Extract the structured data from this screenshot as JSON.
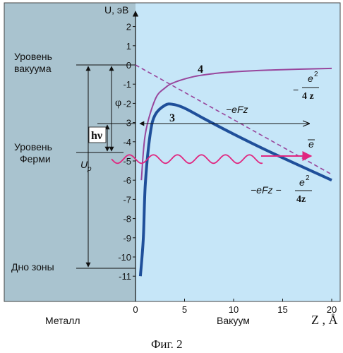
{
  "figure": {
    "caption": "Фиг. 2",
    "axis_y_label": "U, эВ",
    "axis_x_label": "Z , Å",
    "region_left": "Металл",
    "region_right": "Вакуум",
    "left_labels": {
      "vacuum_level_1": "Уровень",
      "vacuum_level_2": "вакуума",
      "fermi_level_1": "Уровень",
      "fermi_level_2": "Ферми",
      "band_bottom": "Дно зоны",
      "up": "U",
      "up_sub": "p",
      "phi": "φ",
      "hv": "hν"
    },
    "curve_labels": {
      "c4": "4",
      "c3": "3",
      "eFz": "−eFz",
      "electron": "e",
      "image_num": "e",
      "image_den": "4 z",
      "comb_prefix": "−eFz −",
      "comb_num": "e",
      "comb_den": "4z",
      "sup2": "2"
    },
    "colors": {
      "metal": "#a9c3cf",
      "vacuum": "#c6e6f8",
      "curve4": "#98469c",
      "curve3": "#1f4f9a",
      "dashed": "#98469c",
      "wave": "#e0267f"
    }
  },
  "chart_data": {
    "type": "line",
    "xlabel": "Z , Å",
    "ylabel": "U, эВ",
    "xlim": [
      0,
      20
    ],
    "ylim": [
      -11.5,
      2.5
    ],
    "x_ticks": [
      "0",
      "5",
      "10",
      "15",
      "20"
    ],
    "y_ticks": [
      "2",
      "1",
      "0",
      "-1",
      "-2",
      "-3",
      "-4",
      "-5",
      "-6",
      "-7",
      "-8",
      "-9",
      "-10",
      "-11"
    ],
    "vacuum_level": 0,
    "fermi_level": -4.5,
    "band_bottom": -10.5,
    "series": [
      {
        "name": "4",
        "x": [
          0.6,
          1,
          2,
          3,
          4,
          6,
          8,
          10,
          14,
          20
        ],
        "y": [
          -6,
          -3.6,
          -1.8,
          -1.2,
          -0.9,
          -0.6,
          -0.45,
          -0.36,
          -0.26,
          -0.18
        ]
      },
      {
        "name": "3",
        "x": [
          0.5,
          0.8,
          1,
          1.5,
          2,
          3,
          3.8,
          5,
          7,
          10,
          14,
          20
        ],
        "y": [
          -11,
          -9,
          -6.2,
          -3.6,
          -2.6,
          -2.1,
          -2.05,
          -2.25,
          -2.8,
          -3.6,
          -4.6,
          -6.0
        ]
      },
      {
        "name": "−eFz",
        "x": [
          0,
          20
        ],
        "y": [
          0,
          -5.7
        ]
      }
    ]
  }
}
